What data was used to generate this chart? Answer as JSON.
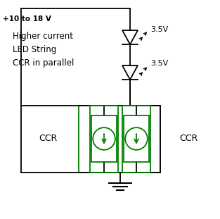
{
  "bg_color": "#ffffff",
  "line_color": "#000000",
  "green_color": "#008000",
  "title_text": "+10 to 18 V",
  "label_text": "Higher current\nLED String\nCCR in parallel",
  "ccr_left": "CCR",
  "ccr_right": "CCR",
  "v1_label": "3.5V",
  "v2_label": "3.5V",
  "fig_width": 3.13,
  "fig_height": 3.11,
  "dpi": 100
}
